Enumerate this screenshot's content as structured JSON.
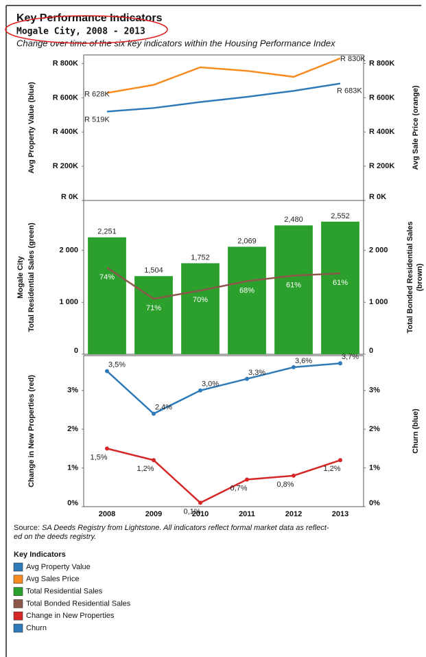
{
  "header": {
    "title": "Key Performance Indicators",
    "subtitle": "Mogale City, 2008 - 2013",
    "description": "Change over time of the six key indicators within the Housing Performance Index"
  },
  "chart_data": [
    {
      "type": "line",
      "ylabel": [
        "Avg Property Value (blue)"
      ],
      "y2label": [
        "Avg Sale Price (orange)"
      ],
      "ylim": [
        0,
        850000
      ],
      "yticks": [
        {
          "value": 0,
          "label": "R 0K"
        },
        {
          "value": 200000,
          "label": "R 200K"
        },
        {
          "value": 400000,
          "label": "R 400K"
        },
        {
          "value": 600000,
          "label": "R 600K"
        },
        {
          "value": 800000,
          "label": "R 800K"
        }
      ],
      "y2lim": [
        0,
        850000
      ],
      "y2ticks": [
        {
          "value": 0,
          "label": "R 0K"
        },
        {
          "value": 200000,
          "label": "R 200K"
        },
        {
          "value": 400000,
          "label": "R 400K"
        },
        {
          "value": 600000,
          "label": "R 600K"
        },
        {
          "value": 800000,
          "label": "R 800K"
        }
      ],
      "markers": false,
      "series": [
        {
          "name": "Avg Property Value",
          "color": "#2e7ab8",
          "values": [
            519000,
            540000,
            575000,
            605000,
            640000,
            683000
          ],
          "value_labels": [
            "R 519K",
            null,
            null,
            null,
            null,
            "R 683K"
          ]
        },
        {
          "name": "Avg Sales Price",
          "axis": "y2",
          "color": "#f68b1f",
          "values": [
            628000,
            675000,
            778000,
            757000,
            722000,
            830000
          ],
          "value_labels": [
            "R 628K",
            null,
            null,
            null,
            null,
            "R 830K"
          ]
        }
      ]
    },
    {
      "type": "bar",
      "ylabel": [
        "Mogale City",
        "Total Residential Sales (green)"
      ],
      "y2label": [
        "Total Bonded Residential Sales",
        "(brown)"
      ],
      "ylim": [
        0,
        2960
      ],
      "yticks": [
        0,
        {
          "value": 1000,
          "label": "1 000"
        },
        {
          "value": 2000,
          "label": "2 000"
        }
      ],
      "y2lim": [
        0,
        2960
      ],
      "y2ticks": [
        0,
        {
          "value": 1000,
          "label": "1 000"
        },
        {
          "value": 2000,
          "label": "2 000"
        }
      ],
      "markers": false,
      "series": [
        {
          "name": "Total Residential Sales",
          "type": "bar",
          "color": "#2ca02c",
          "values": [
            2251,
            1504,
            1752,
            2069,
            2480,
            2552
          ],
          "value_labels": [
            "2,251",
            "1,504",
            "1,752",
            "2,069",
            "2,480",
            "2,552"
          ]
        },
        {
          "name": "Total Bonded Residential Sales",
          "type": "line",
          "axis": "y2",
          "color": "#8c564b",
          "values": [
            1666,
            1068,
            1226,
            1407,
            1513,
            1557
          ],
          "share_labels": [
            "74%",
            "71%",
            "70%",
            "68%",
            "61%",
            "61%"
          ]
        }
      ]
    },
    {
      "type": "line",
      "categories": [
        "2008",
        "2009",
        "2010",
        "2011",
        "2012",
        "2013"
      ],
      "ylabel": [
        "Change in New Properties (red)"
      ],
      "y2label": [
        "Churn (blue)"
      ],
      "ylim": [
        0,
        3.9
      ],
      "yticks": [
        {
          "value": 0,
          "label": "0%"
        },
        {
          "value": 1,
          "label": "1%"
        },
        {
          "value": 2,
          "label": "2%"
        },
        {
          "value": 3,
          "label": "3%"
        }
      ],
      "y2lim": [
        0,
        3.9
      ],
      "y2ticks": [
        {
          "value": 0,
          "label": "0%"
        },
        {
          "value": 1,
          "label": "1%"
        },
        {
          "value": 2,
          "label": "2%"
        },
        {
          "value": 3,
          "label": "3%"
        }
      ],
      "markers": true,
      "series": [
        {
          "name": "Change in New Properties",
          "color": "#d62728",
          "values": [
            1.5,
            1.2,
            0.1,
            0.7,
            0.8,
            1.2
          ],
          "value_labels": [
            "1,5%",
            "1,2%",
            "0,1%",
            "0,7%",
            "0,8%",
            "1,2%"
          ]
        },
        {
          "name": "Churn",
          "axis": "y2",
          "color": "#2e7ab8",
          "values": [
            3.5,
            2.4,
            3.0,
            3.3,
            3.6,
            3.7
          ],
          "value_labels": [
            "3,5%",
            "2,4%",
            "3,0%",
            "3,3%",
            "3,6%",
            "3,7%"
          ]
        }
      ]
    }
  ],
  "footer": {
    "source_prefix": "Source:",
    "source_lines": [
      "SA Deeds Registry from Lightstone.  All indicators reflect formal market data as reflect-",
      "ed on the deeds registry."
    ],
    "legend_title": "Key Indicators"
  }
}
